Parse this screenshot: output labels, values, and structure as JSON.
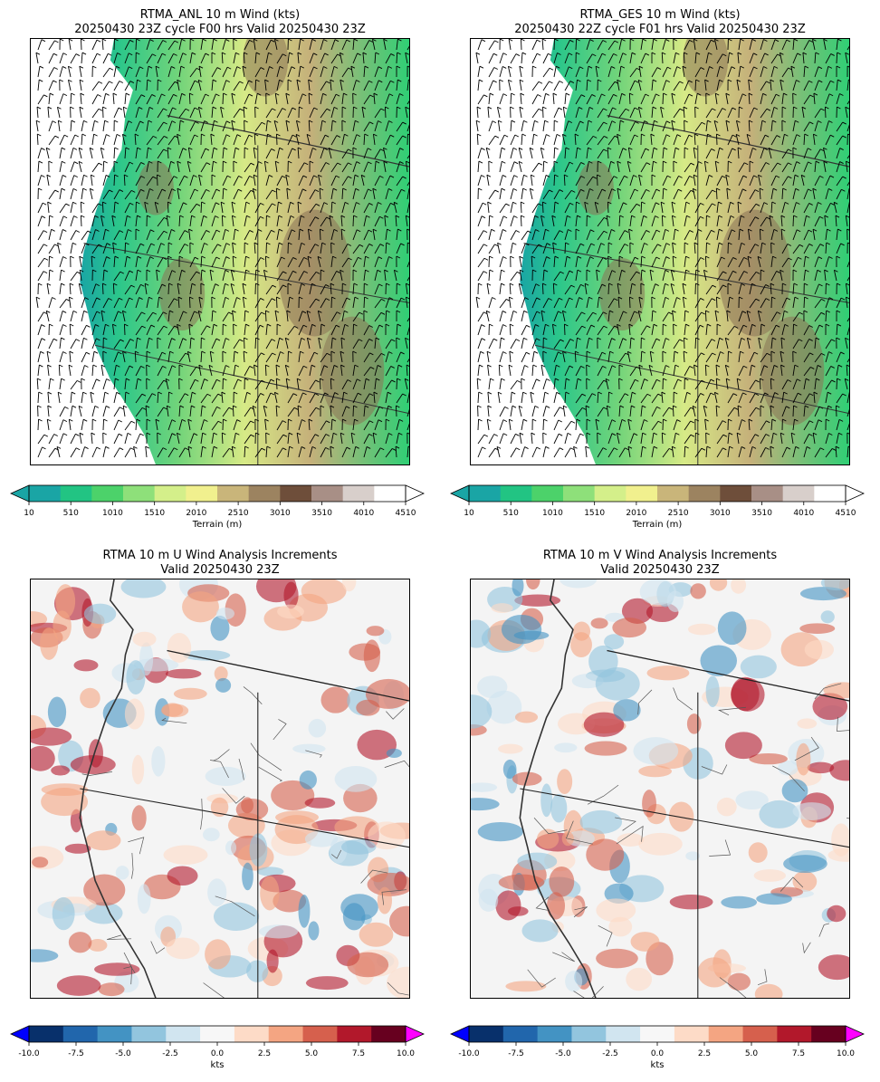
{
  "panels": [
    {
      "title_line1": "RTMA_ANL 10 m Wind (kts)",
      "title_line2": "20250430 23Z cycle F00 hrs Valid 20250430 23Z"
    },
    {
      "title_line1": "RTMA_GES 10 m Wind (kts)",
      "title_line2": "20250430 22Z cycle F01 hrs Valid 20250430 23Z"
    },
    {
      "title_line1": "RTMA 10 m U Wind Analysis Increments",
      "title_line2": "Valid 20250430 23Z"
    },
    {
      "title_line1": "RTMA 10 m V Wind Analysis Increments",
      "title_line2": "Valid 20250430 23Z"
    }
  ],
  "terrain_colorbar": {
    "label": "Terrain (m)",
    "ticks": [
      "10",
      "510",
      "1010",
      "1510",
      "2010",
      "2510",
      "3010",
      "3510",
      "4010",
      "4510"
    ],
    "min": 10,
    "max": 4510,
    "colors": [
      "#1aa5a5",
      "#22c483",
      "#4cd26a",
      "#8ee07a",
      "#d4ef8a",
      "#f1f08e",
      "#c9b57a",
      "#9c8360",
      "#6e4e3a",
      "#a88f86",
      "#d8cfcb",
      "#ffffff"
    ]
  },
  "increment_colorbar": {
    "label": "kts",
    "ticks": [
      "-10.0",
      "-7.5",
      "-5.0",
      "-2.5",
      "0.0",
      "2.5",
      "5.0",
      "7.5",
      "10.0"
    ],
    "min": -10,
    "max": 10,
    "under_color": "#0000ff",
    "over_color": "#ff00ff",
    "colors": [
      "#08306b",
      "#2166ac",
      "#4393c3",
      "#92c5de",
      "#d1e5f0",
      "#f7f7f7",
      "#fddbc7",
      "#f4a582",
      "#d6604d",
      "#b2182b",
      "#67001f"
    ]
  }
}
